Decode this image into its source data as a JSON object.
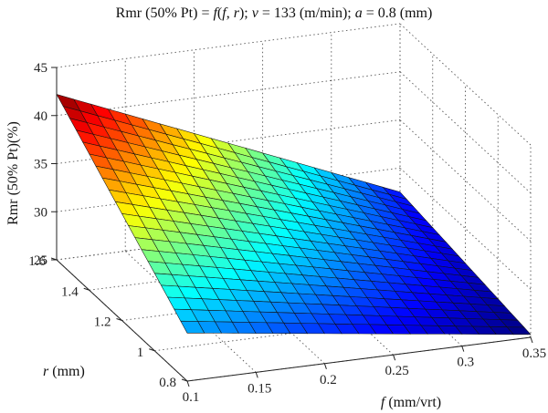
{
  "chart_data": {
    "type": "surface",
    "title_parts": [
      "Rmr (50% Pt) = ",
      "f",
      "(",
      "f",
      ", ",
      "r",
      "); ",
      "v",
      " = 133 (m/min); ",
      "a",
      " = 0.8 (mm)"
    ],
    "xlabel_var": "f",
    "xlabel_unit": " (mm/vrt)",
    "ylabel_var": "r",
    "ylabel_unit": " (mm)",
    "zlabel": "Rmr (50% Pt)(%)",
    "x_ticks": [
      "0.1",
      "0.15",
      "0.2",
      "0.25",
      "0.3",
      "0.35"
    ],
    "y_ticks": [
      "0.8",
      "1",
      "1.2",
      "1.4",
      "1.6"
    ],
    "z_ticks": [
      "25",
      "30",
      "35",
      "40",
      "45"
    ],
    "xlim": [
      0.1,
      0.35
    ],
    "ylim": [
      0.8,
      1.6
    ],
    "zlim": [
      25,
      45
    ],
    "x_range": [
      0.1,
      0.35
    ],
    "y_range": [
      0.8,
      1.6
    ],
    "grid": true,
    "colormap": "jet",
    "corner_values": [
      {
        "f": 0.1,
        "r": 1.6,
        "Rmr": 42.2
      },
      {
        "f": 0.1,
        "r": 0.8,
        "Rmr": 30.0
      },
      {
        "f": 0.35,
        "r": 1.6,
        "Rmr": 27.5
      },
      {
        "f": 0.35,
        "r": 0.8,
        "Rmr": 25.3
      }
    ],
    "grid_cells": 20
  }
}
